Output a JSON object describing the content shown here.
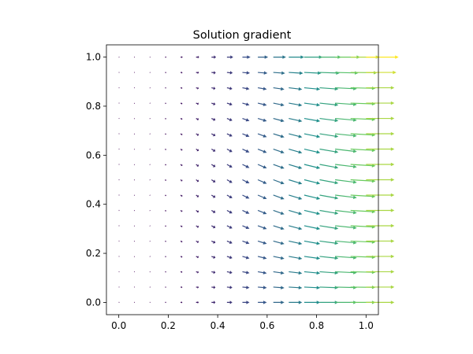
{
  "chart_data": {
    "type": "quiver",
    "title": "Solution gradient",
    "colormap": "viridis",
    "x": [
      0,
      0.0625,
      0.125,
      0.1875,
      0.25,
      0.3125,
      0.375,
      0.4375,
      0.5,
      0.5625,
      0.625,
      0.6875,
      0.75,
      0.8125,
      0.875,
      0.9375,
      1
    ],
    "y": [
      0,
      0.0625,
      0.125,
      0.1875,
      0.25,
      0.3125,
      0.375,
      0.4375,
      0.5,
      0.5625,
      0.625,
      0.6875,
      0.75,
      0.8125,
      0.875,
      0.9375,
      1
    ],
    "u": [
      [
        0,
        0.01,
        0.05,
        0.11,
        0.19,
        0.29,
        0.42,
        0.57,
        0.75,
        0.95,
        1.17,
        1.42,
        1.69,
        1.98,
        2.3,
        2.64,
        3.0
      ],
      [
        0,
        0.01,
        0.05,
        0.11,
        0.19,
        0.29,
        0.42,
        0.57,
        0.75,
        0.95,
        1.17,
        1.42,
        1.69,
        1.98,
        2.3,
        2.64,
        3.0
      ],
      [
        0,
        0.01,
        0.05,
        0.11,
        0.19,
        0.29,
        0.42,
        0.57,
        0.75,
        0.95,
        1.17,
        1.42,
        1.69,
        1.98,
        2.3,
        2.64,
        3.0
      ],
      [
        0,
        0.01,
        0.05,
        0.11,
        0.19,
        0.29,
        0.42,
        0.57,
        0.75,
        0.95,
        1.17,
        1.42,
        1.69,
        1.98,
        2.3,
        2.64,
        3.0
      ],
      [
        0,
        0.01,
        0.05,
        0.11,
        0.19,
        0.29,
        0.42,
        0.57,
        0.75,
        0.95,
        1.17,
        1.42,
        1.69,
        1.98,
        2.3,
        2.64,
        3.0
      ],
      [
        0,
        0.01,
        0.05,
        0.11,
        0.19,
        0.29,
        0.42,
        0.57,
        0.75,
        0.95,
        1.17,
        1.42,
        1.69,
        1.98,
        2.3,
        2.64,
        3.0
      ],
      [
        0,
        0.01,
        0.05,
        0.11,
        0.19,
        0.29,
        0.42,
        0.57,
        0.75,
        0.95,
        1.17,
        1.42,
        1.69,
        1.98,
        2.3,
        2.64,
        3.0
      ],
      [
        0,
        0.01,
        0.05,
        0.11,
        0.19,
        0.29,
        0.42,
        0.57,
        0.75,
        0.95,
        1.17,
        1.42,
        1.69,
        1.98,
        2.3,
        2.64,
        3.0
      ],
      [
        0,
        0.01,
        0.05,
        0.11,
        0.19,
        0.29,
        0.42,
        0.57,
        0.75,
        0.95,
        1.17,
        1.42,
        1.69,
        1.98,
        2.3,
        2.64,
        3.0
      ],
      [
        0,
        0.01,
        0.05,
        0.11,
        0.19,
        0.29,
        0.42,
        0.57,
        0.75,
        0.95,
        1.17,
        1.42,
        1.69,
        1.98,
        2.3,
        2.64,
        3.0
      ],
      [
        0,
        0.01,
        0.05,
        0.11,
        0.19,
        0.29,
        0.42,
        0.57,
        0.75,
        0.95,
        1.17,
        1.42,
        1.69,
        1.98,
        2.3,
        2.64,
        3.0
      ],
      [
        0,
        0.01,
        0.05,
        0.11,
        0.19,
        0.29,
        0.42,
        0.57,
        0.75,
        0.95,
        1.17,
        1.42,
        1.69,
        1.98,
        2.3,
        2.64,
        3.0
      ],
      [
        0,
        0.01,
        0.05,
        0.11,
        0.19,
        0.29,
        0.42,
        0.57,
        0.75,
        0.95,
        1.17,
        1.42,
        1.69,
        1.98,
        2.3,
        2.64,
        3.0
      ],
      [
        0,
        0.01,
        0.05,
        0.11,
        0.19,
        0.29,
        0.42,
        0.57,
        0.75,
        0.95,
        1.17,
        1.42,
        1.69,
        1.98,
        2.3,
        2.64,
        3.0
      ],
      [
        0,
        0.01,
        0.05,
        0.11,
        0.19,
        0.29,
        0.42,
        0.57,
        0.75,
        0.95,
        1.17,
        1.42,
        1.69,
        1.98,
        2.3,
        2.64,
        3.0
      ],
      [
        0,
        0.01,
        0.05,
        0.12,
        0.2,
        0.31,
        0.45,
        0.61,
        0.8,
        1.02,
        1.25,
        1.52,
        1.81,
        2.12,
        2.46,
        2.82,
        3.21
      ],
      [
        0,
        0.01,
        0.06,
        0.13,
        0.22,
        0.33,
        0.48,
        0.66,
        0.86,
        1.09,
        1.35,
        1.63,
        1.94,
        2.28,
        2.65,
        3.04,
        3.45
      ]
    ],
    "v": [
      [
        0,
        0,
        0,
        0,
        0,
        0,
        0,
        0,
        0,
        0,
        0,
        0,
        0,
        0,
        0,
        0,
        0
      ],
      [
        0,
        0,
        -0.01,
        -0.02,
        -0.03,
        -0.04,
        -0.05,
        -0.06,
        -0.07,
        -0.08,
        -0.09,
        -0.09,
        -0.08,
        -0.07,
        -0.06,
        -0.03,
        0
      ],
      [
        0,
        0,
        -0.02,
        -0.03,
        -0.05,
        -0.08,
        -0.1,
        -0.12,
        -0.14,
        -0.16,
        -0.17,
        -0.17,
        -0.16,
        -0.14,
        -0.11,
        -0.06,
        0
      ],
      [
        0,
        -0.01,
        -0.02,
        -0.05,
        -0.08,
        -0.11,
        -0.15,
        -0.18,
        -0.21,
        -0.23,
        -0.24,
        -0.25,
        -0.23,
        -0.21,
        -0.16,
        -0.09,
        0
      ],
      [
        0,
        -0.01,
        -0.03,
        -0.06,
        -0.1,
        -0.14,
        -0.19,
        -0.23,
        -0.27,
        -0.29,
        -0.31,
        -0.31,
        -0.3,
        -0.26,
        -0.2,
        -0.12,
        0
      ],
      [
        0,
        -0.01,
        -0.03,
        -0.07,
        -0.12,
        -0.17,
        -0.22,
        -0.27,
        -0.31,
        -0.35,
        -0.37,
        -0.37,
        -0.35,
        -0.31,
        -0.24,
        -0.14,
        0
      ],
      [
        0,
        -0.01,
        -0.04,
        -0.08,
        -0.13,
        -0.19,
        -0.24,
        -0.3,
        -0.35,
        -0.38,
        -0.41,
        -0.41,
        -0.39,
        -0.34,
        -0.27,
        -0.15,
        0
      ],
      [
        0,
        -0.01,
        -0.04,
        -0.08,
        -0.14,
        -0.2,
        -0.26,
        -0.32,
        -0.37,
        -0.41,
        -0.43,
        -0.43,
        -0.41,
        -0.36,
        -0.28,
        -0.16,
        0
      ],
      [
        0,
        -0.01,
        -0.04,
        -0.09,
        -0.14,
        -0.2,
        -0.26,
        -0.32,
        -0.38,
        -0.42,
        -0.44,
        -0.44,
        -0.42,
        -0.37,
        -0.29,
        -0.16,
        0
      ],
      [
        0,
        -0.01,
        -0.04,
        -0.08,
        -0.14,
        -0.2,
        -0.26,
        -0.32,
        -0.37,
        -0.41,
        -0.43,
        -0.43,
        -0.41,
        -0.36,
        -0.28,
        -0.16,
        0
      ],
      [
        0,
        -0.01,
        -0.04,
        -0.08,
        -0.13,
        -0.19,
        -0.24,
        -0.3,
        -0.35,
        -0.38,
        -0.41,
        -0.41,
        -0.39,
        -0.34,
        -0.27,
        -0.15,
        0
      ],
      [
        0,
        -0.01,
        -0.03,
        -0.07,
        -0.12,
        -0.17,
        -0.22,
        -0.27,
        -0.31,
        -0.35,
        -0.37,
        -0.37,
        -0.35,
        -0.31,
        -0.24,
        -0.14,
        0
      ],
      [
        0,
        -0.01,
        -0.03,
        -0.06,
        -0.1,
        -0.14,
        -0.19,
        -0.23,
        -0.27,
        -0.29,
        -0.31,
        -0.31,
        -0.3,
        -0.26,
        -0.2,
        -0.12,
        0
      ],
      [
        0,
        -0.01,
        -0.02,
        -0.05,
        -0.08,
        -0.11,
        -0.15,
        -0.18,
        -0.21,
        -0.23,
        -0.24,
        -0.25,
        -0.23,
        -0.21,
        -0.16,
        -0.09,
        0
      ],
      [
        0,
        0,
        -0.02,
        -0.03,
        -0.05,
        -0.08,
        -0.1,
        -0.12,
        -0.14,
        -0.16,
        -0.17,
        -0.17,
        -0.16,
        -0.14,
        -0.11,
        -0.06,
        0
      ],
      [
        0,
        0,
        -0.01,
        -0.02,
        -0.03,
        -0.04,
        -0.05,
        -0.06,
        -0.07,
        -0.08,
        -0.09,
        -0.09,
        -0.08,
        -0.07,
        -0.06,
        -0.03,
        0
      ],
      [
        0,
        0,
        0,
        0,
        0,
        0,
        0,
        0,
        0,
        0,
        0,
        0,
        0,
        0,
        0,
        0,
        0
      ]
    ],
    "xlim": [
      -0.05,
      1.05
    ],
    "ylim": [
      -0.05,
      1.05
    ],
    "xticks": [
      {
        "value": 0,
        "label": "0.0"
      },
      0.2,
      0.4,
      0.6,
      0.8,
      {
        "value": 1,
        "label": "1.0"
      }
    ],
    "yticks": [
      {
        "value": 0,
        "label": "0.0"
      },
      0.2,
      0.4,
      0.6,
      0.8,
      {
        "value": 1,
        "label": "1.0"
      }
    ]
  }
}
